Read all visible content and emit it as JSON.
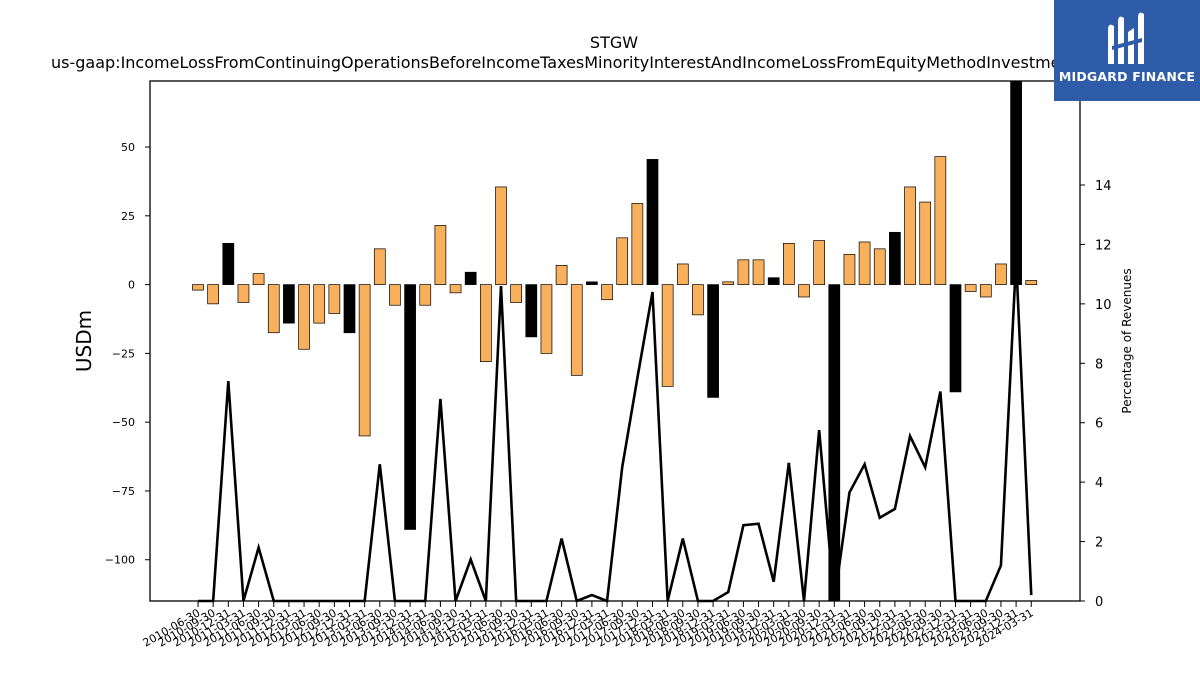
{
  "chart_data": {
    "type": "bar",
    "title": "STGW",
    "subtitle": "us-gaap:IncomeLossFromContinuingOperationsBeforeIncomeTaxesMinorityInterestAndIncomeLossFromEquityMethodInvestments",
    "ylabel": "USDm",
    "y2label": "Percentage of Revenues",
    "ylim": [
      -115,
      74
    ],
    "y2lim": [
      0,
      17.5
    ],
    "yticks": [
      -100,
      -75,
      -50,
      -25,
      0,
      25,
      50
    ],
    "y2ticks": [
      0,
      2,
      4,
      6,
      8,
      10,
      12,
      14
    ],
    "bar_colors": {
      "positive_quarter": "#f9b05c",
      "annual_q4": "#000000"
    },
    "categories": [
      "2010-06-30",
      "2010-09-30",
      "2010-12-31",
      "2011-03-31",
      "2011-06-30",
      "2011-09-30",
      "2011-12-31",
      "2012-03-31",
      "2012-06-30",
      "2012-09-30",
      "2012-12-31",
      "2013-03-31",
      "2013-06-30",
      "2013-09-30",
      "2013-12-31",
      "2014-03-31",
      "2014-06-30",
      "2014-09-30",
      "2014-12-31",
      "2015-03-31",
      "2015-06-30",
      "2015-09-30",
      "2015-12-31",
      "2016-03-31",
      "2016-06-30",
      "2016-09-30",
      "2016-12-31",
      "2017-03-31",
      "2017-06-30",
      "2017-09-30",
      "2017-12-31",
      "2018-03-31",
      "2018-06-30",
      "2018-09-30",
      "2018-12-31",
      "2019-03-31",
      "2019-06-30",
      "2019-09-30",
      "2019-12-31",
      "2020-03-31",
      "2020-06-30",
      "2020-09-30",
      "2020-12-31",
      "2021-03-31",
      "2021-06-30",
      "2021-09-30",
      "2021-12-31",
      "2022-03-31",
      "2022-06-30",
      "2022-09-30",
      "2022-12-31",
      "2023-03-31",
      "2023-06-30",
      "2023-09-30",
      "2023-12-31",
      "2024-03-31"
    ],
    "values": [
      -2,
      -7,
      15,
      -6.5,
      4,
      -17.5,
      -14,
      -23.5,
      -14,
      -10.5,
      -17.5,
      -55,
      13,
      -7.5,
      -89,
      -7.5,
      21.5,
      -3,
      4.5,
      -28,
      35.5,
      -6.5,
      -19,
      -25,
      7,
      -33,
      1,
      -5.5,
      17,
      29.5,
      45.5,
      -37,
      7.5,
      -11,
      -41,
      1,
      9,
      9,
      2.5,
      15,
      -4.5,
      16,
      -115,
      11,
      15.5,
      13,
      19,
      35.5,
      30,
      46.5,
      -39,
      -2.5,
      -4.5,
      7.5,
      74,
      1.5
    ],
    "annual_flags": [
      false,
      false,
      true,
      false,
      false,
      false,
      true,
      false,
      false,
      false,
      true,
      false,
      false,
      false,
      true,
      false,
      false,
      false,
      true,
      false,
      false,
      false,
      true,
      false,
      false,
      false,
      true,
      false,
      false,
      false,
      true,
      false,
      false,
      false,
      true,
      false,
      false,
      false,
      true,
      false,
      false,
      false,
      true,
      false,
      false,
      false,
      true,
      false,
      false,
      false,
      true,
      false,
      false,
      false,
      true,
      false
    ],
    "line_series": {
      "name": "Percentage of Revenues",
      "color": "#000000",
      "values": [
        0,
        0,
        7.4,
        0,
        1.8,
        0,
        0,
        0,
        0,
        0,
        0,
        0,
        4.6,
        0,
        0,
        0,
        6.8,
        0,
        1.4,
        0,
        10.6,
        0,
        0,
        0,
        2.1,
        0,
        0.2,
        0,
        4.5,
        7.5,
        10.4,
        0,
        2.1,
        0,
        0,
        0.3,
        2.55,
        2.6,
        0.65,
        4.65,
        0,
        5.75,
        0,
        3.65,
        4.6,
        2.8,
        3.1,
        5.55,
        4.5,
        7.05,
        0,
        0,
        0,
        1.2,
        11.5,
        0.2
      ]
    },
    "legend": "none"
  },
  "logo": {
    "text": "MIDGARD FINANCE",
    "color": "#2f5ca8"
  }
}
